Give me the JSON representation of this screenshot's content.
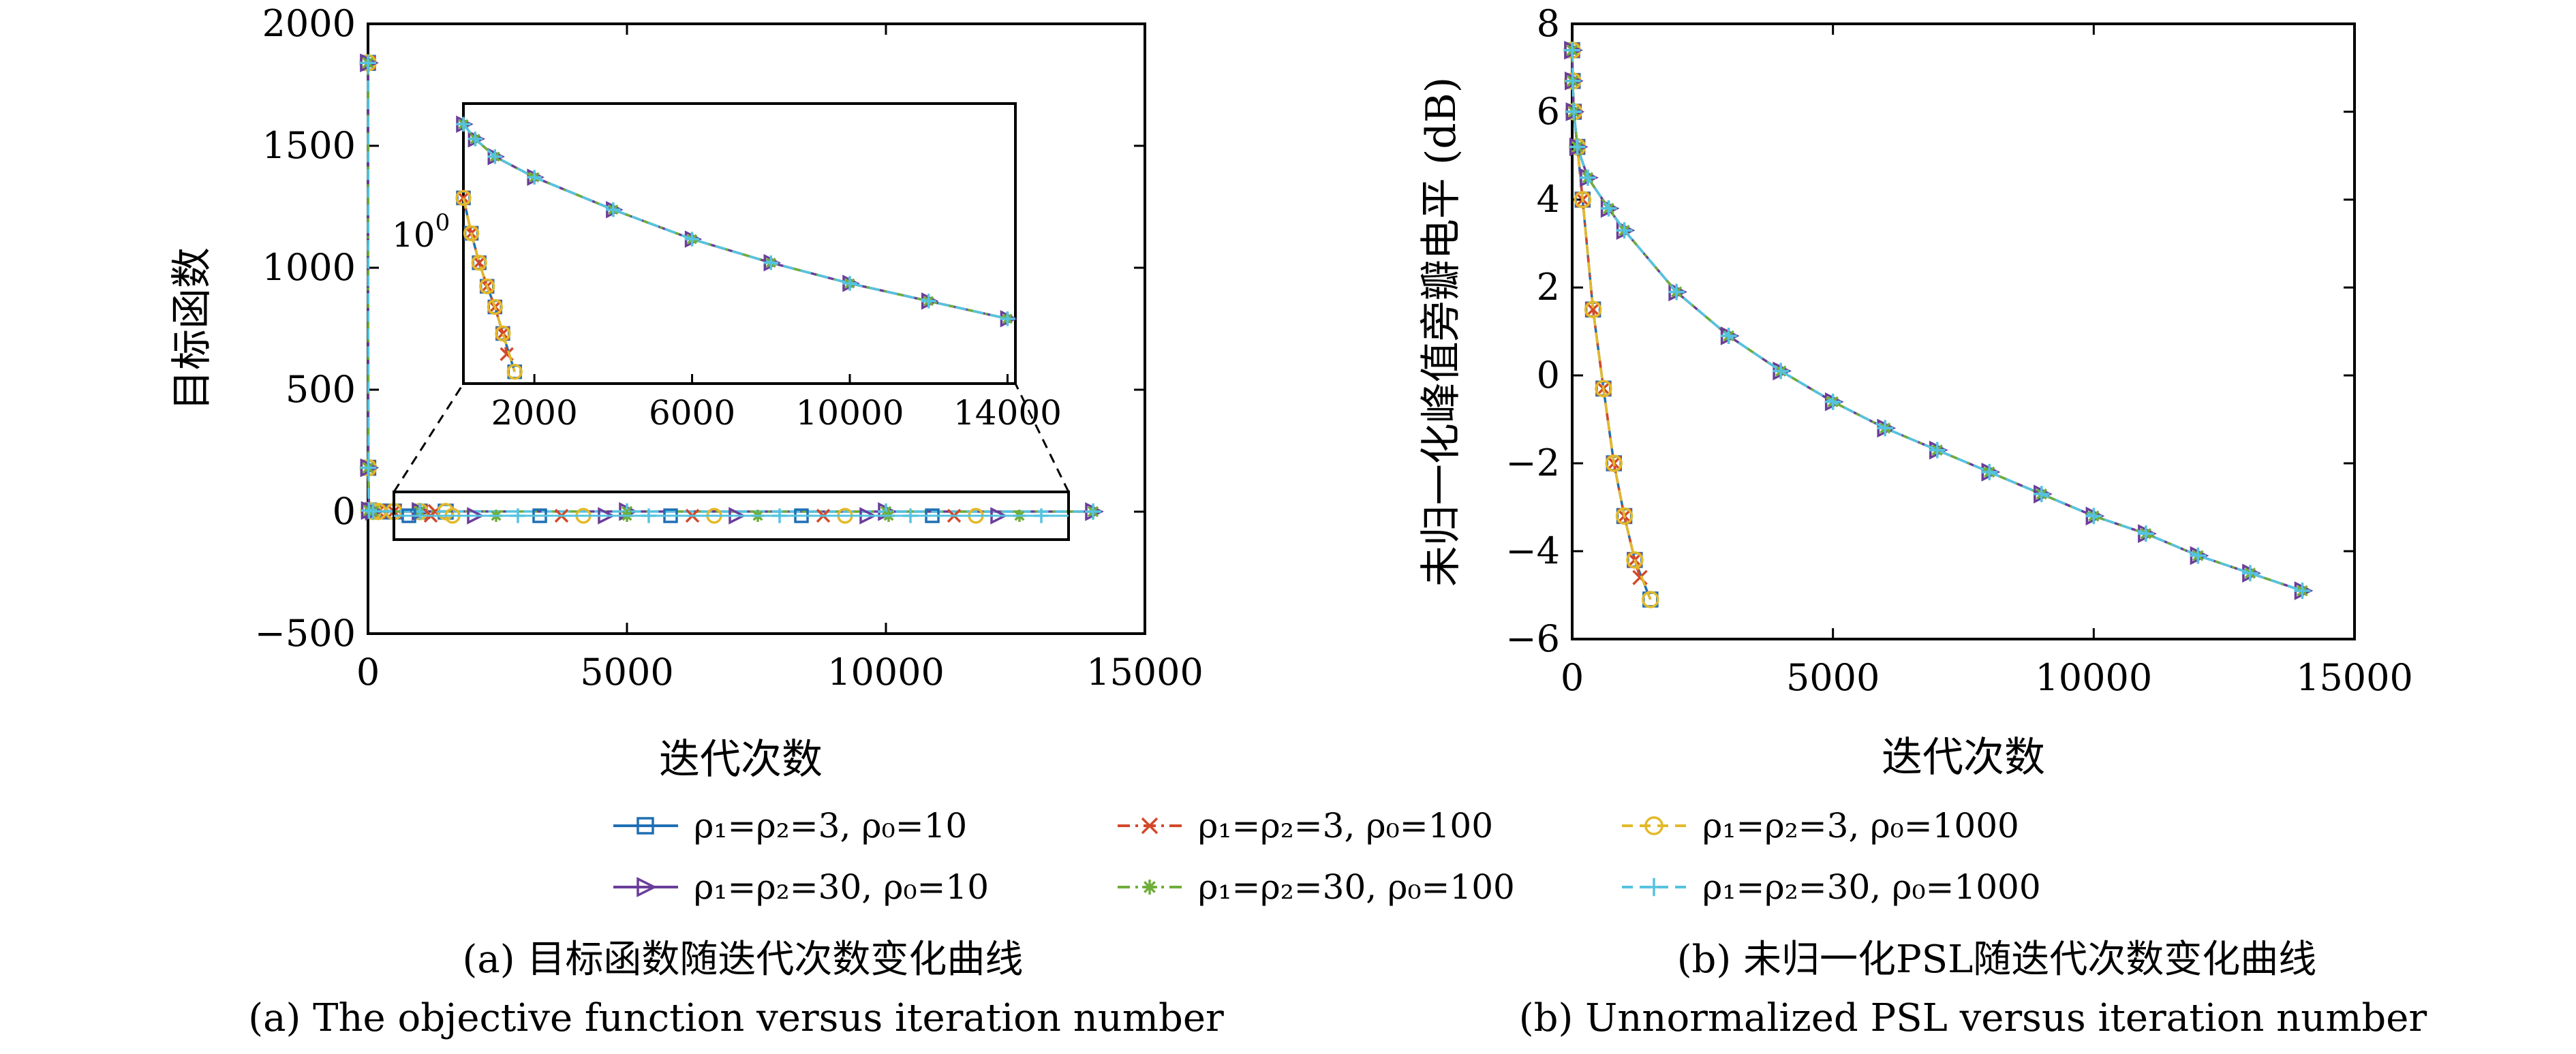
{
  "legend": [
    {
      "label": "ρ₁=ρ₂=3, ρ₀=10",
      "color": "#1f6fb4",
      "marker": "square",
      "dash": "solid"
    },
    {
      "label": "ρ₁=ρ₂=3, ρ₀=100",
      "color": "#d2492a",
      "marker": "x",
      "dash": "dashdot"
    },
    {
      "label": "ρ₁=ρ₂=3, ρ₀=1000",
      "color": "#e3b92a",
      "marker": "circle",
      "dash": "dashed"
    },
    {
      "label": "ρ₁=ρ₂=30, ρ₀=10",
      "color": "#6a3d9a",
      "marker": "triangle-right",
      "dash": "solid"
    },
    {
      "label": "ρ₁=ρ₂=30, ρ₀=100",
      "color": "#6fae3a",
      "marker": "star",
      "dash": "dashdot"
    },
    {
      "label": "ρ₁=ρ₂=30, ρ₀=1000",
      "color": "#55c3e0",
      "marker": "plus",
      "dash": "dashed"
    }
  ],
  "captions": {
    "a_cn": "(a) 目标函数随迭代次数变化曲线",
    "a_en": "(a) The objective function versus iteration number",
    "b_cn": "(b) 未归一化PSL随迭代次数变化曲线",
    "b_en": "(b) Unnormalized PSL versus iteration number"
  },
  "chart_data": [
    {
      "type": "line",
      "panel": "a",
      "xlabel": "迭代次数",
      "ylabel": "目标函数",
      "xlim": [
        0,
        15000
      ],
      "ylim": [
        -500,
        2000
      ],
      "xticks": [
        0,
        5000,
        10000,
        15000
      ],
      "yticks": [
        -500,
        0,
        500,
        1000,
        1500,
        2000
      ],
      "series": [
        {
          "x": [
            0,
            5,
            20,
            100,
            200,
            500,
            1000,
            1500
          ],
          "y": [
            1840,
            180,
            5,
            1.2,
            0.8,
            0.5,
            0.3,
            0.2
          ]
        },
        {
          "x": [
            0,
            5,
            20,
            100,
            200,
            500,
            1000,
            1300
          ],
          "y": [
            1840,
            180,
            5,
            1.2,
            0.8,
            0.5,
            0.3,
            0.2
          ]
        },
        {
          "x": [
            0,
            5,
            20,
            100,
            200,
            500,
            1000,
            1500
          ],
          "y": [
            1840,
            180,
            5,
            1.2,
            0.8,
            0.5,
            0.3,
            0.2
          ]
        },
        {
          "x": [
            0,
            5,
            20,
            100,
            1000,
            5000,
            10000,
            14000
          ],
          "y": [
            1840,
            180,
            5,
            1.5,
            1.0,
            0.6,
            0.3,
            0.2
          ]
        },
        {
          "x": [
            0,
            5,
            20,
            100,
            1000,
            5000,
            10000,
            14000
          ],
          "y": [
            1840,
            180,
            5,
            1.5,
            1.0,
            0.6,
            0.3,
            0.2
          ]
        },
        {
          "x": [
            0,
            5,
            20,
            100,
            1000,
            5000,
            10000,
            14000
          ],
          "y": [
            1840,
            180,
            5,
            1.5,
            1.0,
            0.6,
            0.3,
            0.2
          ]
        }
      ],
      "inset": {
        "xticks": [
          2000,
          6000,
          10000,
          14000
        ],
        "ytick_label": "10",
        "ytick_exp": "0",
        "xlim": [
          200,
          14200
        ],
        "series": [
          {
            "x": [
              200,
              400,
              600,
              800,
              1000,
              1200,
              1500
            ],
            "y": [
              3.8,
              2.6,
              1.6,
              0.8,
              0.1,
              -0.8,
              -2.1
            ]
          },
          {
            "x": [
              200,
              400,
              600,
              800,
              1000,
              1200,
              1300
            ],
            "y": [
              3.8,
              2.6,
              1.6,
              0.8,
              0.1,
              -0.8,
              -1.5
            ]
          },
          {
            "x": [
              200,
              400,
              600,
              800,
              1000,
              1200,
              1500
            ],
            "y": [
              3.8,
              2.6,
              1.6,
              0.8,
              0.1,
              -0.8,
              -2.1
            ]
          },
          {
            "x": [
              200,
              500,
              1000,
              2000,
              4000,
              6000,
              8000,
              10000,
              12000,
              14000
            ],
            "y": [
              6.3,
              5.8,
              5.2,
              4.5,
              3.4,
              2.4,
              1.6,
              0.9,
              0.3,
              -0.3
            ]
          },
          {
            "x": [
              200,
              500,
              1000,
              2000,
              4000,
              6000,
              8000,
              10000,
              12000,
              14000
            ],
            "y": [
              6.3,
              5.8,
              5.2,
              4.5,
              3.4,
              2.4,
              1.6,
              0.9,
              0.3,
              -0.3
            ]
          },
          {
            "x": [
              200,
              500,
              1000,
              2000,
              4000,
              6000,
              8000,
              10000,
              12000,
              14000
            ],
            "y": [
              6.3,
              5.8,
              5.2,
              4.5,
              3.4,
              2.4,
              1.6,
              0.9,
              0.3,
              -0.3
            ]
          }
        ]
      }
    },
    {
      "type": "line",
      "panel": "b",
      "xlabel": "迭代次数",
      "ylabel": "未归一化峰值旁瓣电平 (dB)",
      "xlim": [
        0,
        15000
      ],
      "ylim": [
        -6,
        8
      ],
      "xticks": [
        0,
        5000,
        10000,
        15000
      ],
      "yticks": [
        -6,
        -4,
        -2,
        0,
        2,
        4,
        6,
        8
      ],
      "series": [
        {
          "x": [
            0,
            10,
            30,
            100,
            200,
            400,
            600,
            800,
            1000,
            1200,
            1500
          ],
          "y": [
            7.4,
            6.7,
            6.0,
            5.2,
            4.0,
            1.5,
            -0.3,
            -2.0,
            -3.2,
            -4.2,
            -5.1
          ]
        },
        {
          "x": [
            0,
            10,
            30,
            100,
            200,
            400,
            600,
            800,
            1000,
            1200,
            1300
          ],
          "y": [
            7.4,
            6.7,
            6.0,
            5.2,
            4.0,
            1.5,
            -0.3,
            -2.0,
            -3.2,
            -4.2,
            -4.6
          ]
        },
        {
          "x": [
            0,
            10,
            30,
            100,
            200,
            400,
            600,
            800,
            1000,
            1200,
            1500
          ],
          "y": [
            7.4,
            6.7,
            6.0,
            5.2,
            4.0,
            1.5,
            -0.3,
            -2.0,
            -3.2,
            -4.2,
            -5.1
          ]
        },
        {
          "x": [
            0,
            10,
            30,
            100,
            300,
            700,
            1000,
            2000,
            3000,
            4000,
            5000,
            6000,
            7000,
            8000,
            9000,
            10000,
            11000,
            12000,
            13000,
            14000
          ],
          "y": [
            7.4,
            6.7,
            6.0,
            5.2,
            4.5,
            3.8,
            3.3,
            1.9,
            0.9,
            0.1,
            -0.6,
            -1.2,
            -1.7,
            -2.2,
            -2.7,
            -3.2,
            -3.6,
            -4.1,
            -4.5,
            -4.9
          ]
        },
        {
          "x": [
            0,
            10,
            30,
            100,
            300,
            700,
            1000,
            2000,
            3000,
            4000,
            5000,
            6000,
            7000,
            8000,
            9000,
            10000,
            11000,
            12000,
            13000,
            14000
          ],
          "y": [
            7.4,
            6.7,
            6.0,
            5.2,
            4.5,
            3.8,
            3.3,
            1.9,
            0.9,
            0.1,
            -0.6,
            -1.2,
            -1.7,
            -2.2,
            -2.7,
            -3.2,
            -3.6,
            -4.1,
            -4.5,
            -4.9
          ]
        },
        {
          "x": [
            0,
            10,
            30,
            100,
            300,
            700,
            1000,
            2000,
            3000,
            4000,
            5000,
            6000,
            7000,
            8000,
            9000,
            10000,
            11000,
            12000,
            13000,
            14000
          ],
          "y": [
            7.4,
            6.7,
            6.0,
            5.2,
            4.5,
            3.8,
            3.3,
            1.9,
            0.9,
            0.1,
            -0.6,
            -1.2,
            -1.7,
            -2.2,
            -2.7,
            -3.2,
            -3.6,
            -4.1,
            -4.5,
            -4.9
          ]
        }
      ]
    }
  ]
}
